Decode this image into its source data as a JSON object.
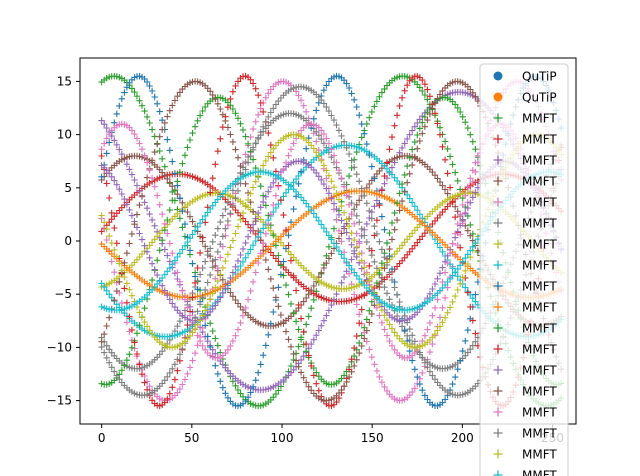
{
  "chart_data": {
    "type": "scatter",
    "title": "",
    "xlabel": "",
    "ylabel": "",
    "xlim": [
      -12,
      263
    ],
    "ylim": [
      -17.2,
      17.2
    ],
    "x_ticks": [
      0,
      50,
      100,
      150,
      200,
      250
    ],
    "y_ticks": [
      -15,
      -10,
      -5,
      0,
      5,
      10,
      15
    ],
    "grid": false,
    "legend_position": "top-right",
    "x_range": [
      0,
      255
    ],
    "amplitude_max": 15.5,
    "qutip_series": [
      {
        "name": "QuTiP",
        "marker": "circle",
        "color": "#1f77b4"
      },
      {
        "name": "QuTiP",
        "marker": "circle",
        "color": "#ff7f0e"
      }
    ],
    "mmft_series": [
      {
        "name": "MMFT",
        "marker": "plus",
        "color": "#2ca02c",
        "amp": 15.5,
        "period": 160,
        "phase": 1.3,
        "offset": 0
      },
      {
        "name": "MMFT",
        "marker": "plus",
        "color": "#d62728",
        "amp": 6.0,
        "period": 180,
        "phase": 0.1,
        "offset": 0.3
      },
      {
        "name": "MMFT",
        "marker": "plus",
        "color": "#9467bd",
        "amp": 14.0,
        "period": 220,
        "phase": 2.2,
        "offset": 0
      },
      {
        "name": "MMFT",
        "marker": "plus",
        "color": "#8c564b",
        "amp": 8.0,
        "period": 150,
        "phase": 0.8,
        "offset": 0
      },
      {
        "name": "MMFT",
        "marker": "plus",
        "color": "#e377c2",
        "amp": 15.0,
        "period": 130,
        "phase": 3.0,
        "offset": 0
      },
      {
        "name": "MMFT",
        "marker": "plus",
        "color": "#7f7f7f",
        "amp": 12.0,
        "period": 170,
        "phase": 4.0,
        "offset": 0
      },
      {
        "name": "MMFT",
        "marker": "plus",
        "color": "#bcbd22",
        "amp": 4.5,
        "period": 140,
        "phase": 5.0,
        "offset": 0
      },
      {
        "name": "MMFT",
        "marker": "plus",
        "color": "#17becf",
        "amp": 9.0,
        "period": 200,
        "phase": 3.6,
        "offset": 0
      },
      {
        "name": "MMFT",
        "marker": "plus",
        "color": "#1f77b4",
        "amp": 15.5,
        "period": 110,
        "phase": 0.4,
        "offset": 0
      },
      {
        "name": "MMFT",
        "marker": "plus",
        "color": "#ff7f0e",
        "amp": 5.0,
        "period": 190,
        "phase": 3.14,
        "offset": -0.3
      },
      {
        "name": "MMFT",
        "marker": "plus",
        "color": "#2ca02c",
        "amp": 13.5,
        "period": 125,
        "phase": 4.6,
        "offset": 0
      },
      {
        "name": "MMFT",
        "marker": "plus",
        "color": "#d62728",
        "amp": 15.5,
        "period": 95,
        "phase": 2.6,
        "offset": 0
      },
      {
        "name": "MMFT",
        "marker": "plus",
        "color": "#9467bd",
        "amp": 7.5,
        "period": 115,
        "phase": 1.9,
        "offset": 0
      },
      {
        "name": "MMFT",
        "marker": "plus",
        "color": "#8c564b",
        "amp": 15.0,
        "period": 145,
        "phase": 5.6,
        "offset": 0
      },
      {
        "name": "MMFT",
        "marker": "plus",
        "color": "#e377c2",
        "amp": 11.0,
        "period": 105,
        "phase": 0.9,
        "offset": 0
      },
      {
        "name": "MMFT",
        "marker": "plus",
        "color": "#7f7f7f",
        "amp": 14.5,
        "period": 175,
        "phase": 3.9,
        "offset": 0
      },
      {
        "name": "MMFT",
        "marker": "plus",
        "color": "#bcbd22",
        "amp": 10.0,
        "period": 135,
        "phase": 2.9,
        "offset": 0
      },
      {
        "name": "MMFT",
        "marker": "plus",
        "color": "#17becf",
        "amp": 6.5,
        "period": 160,
        "phase": 4.4,
        "offset": 0
      }
    ]
  }
}
